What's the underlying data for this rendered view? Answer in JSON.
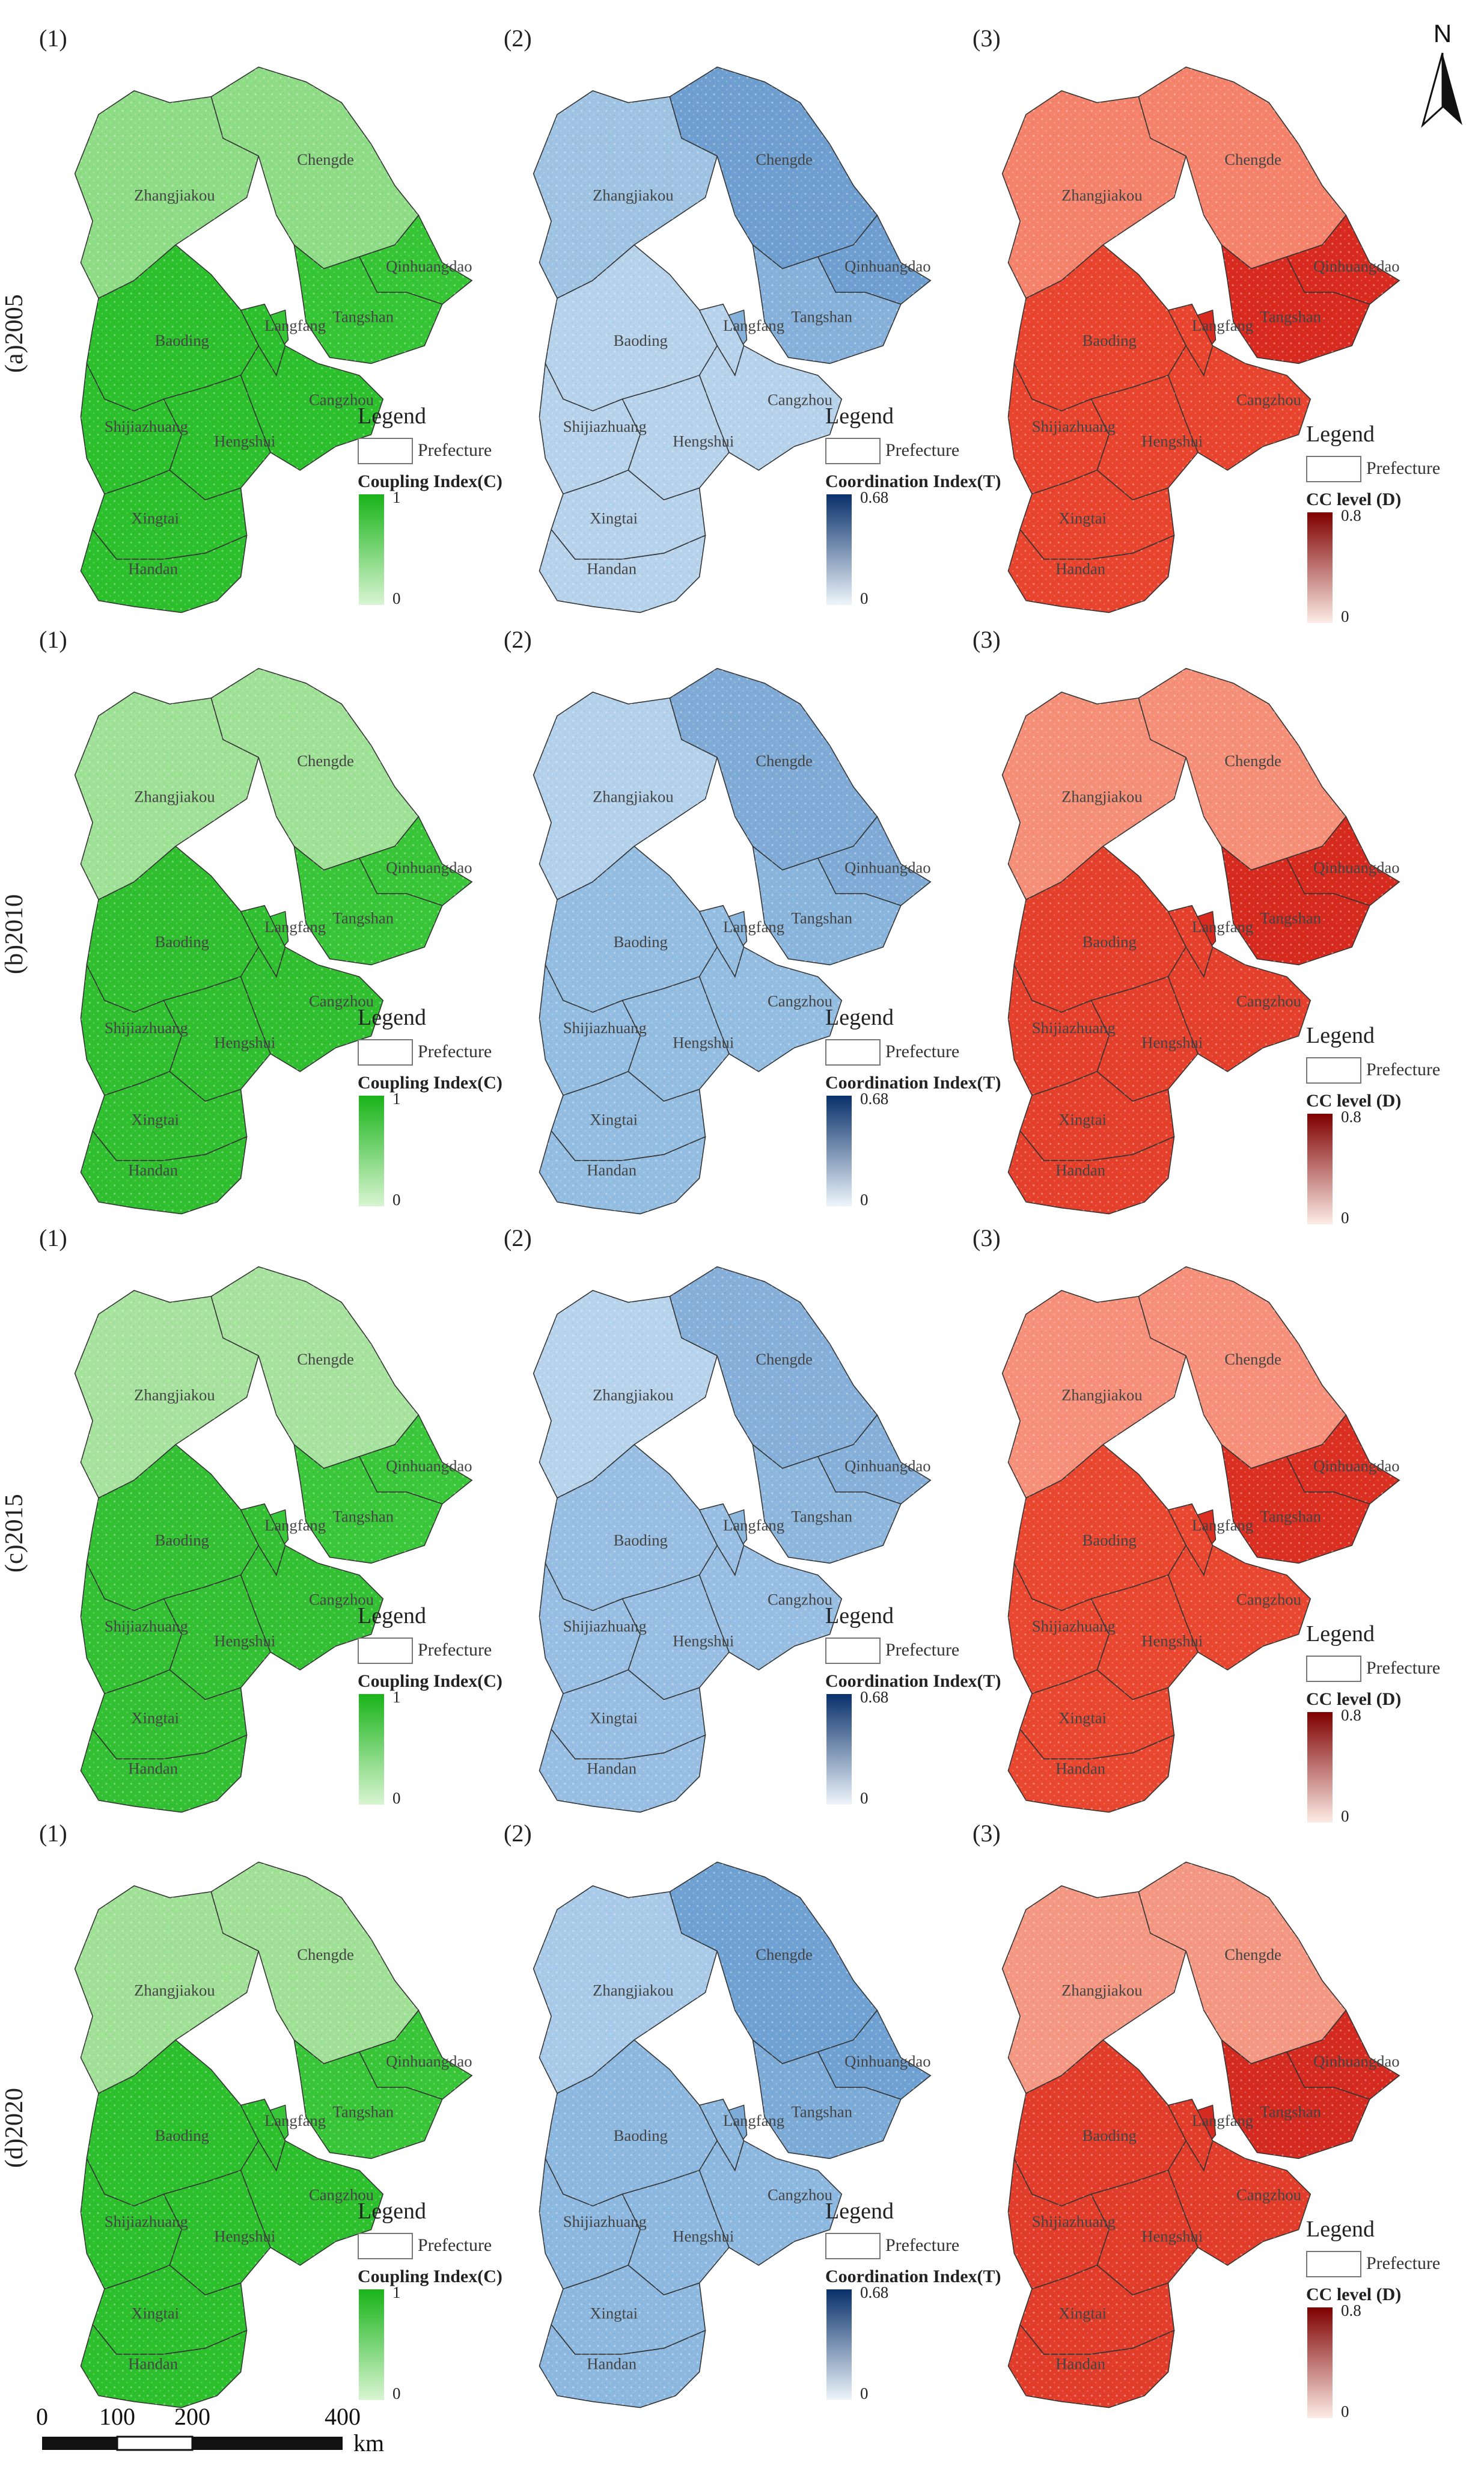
{
  "row_labels": [
    "(a)2005",
    "(b)2010",
    "(c)2015",
    "(d)2020"
  ],
  "panel_labels": [
    "(1)",
    "(2)",
    "(3)"
  ],
  "cities": [
    "Zhangjiakou",
    "Chengde",
    "Qinhuangdao",
    "Tangshan",
    "Baoding",
    "Langfang",
    "Cangzhou",
    "Shijiazhuang",
    "Hengshui",
    "Xingtai",
    "Handan"
  ],
  "legend": {
    "title": "Legend",
    "prefecture_label": "Prefecture",
    "indices": [
      {
        "title": "Coupling Index(C)",
        "max": "1",
        "min": "0",
        "color_dark": "#19b419",
        "color_light": "#d9f5d2"
      },
      {
        "title": "Coordination Index(T)",
        "max": "0.68",
        "min": "0",
        "color_dark": "#08306b",
        "color_light": "#eef5fb"
      },
      {
        "title": "CC level (D)",
        "max": "0.8",
        "min": "0",
        "color_dark": "#7f0000",
        "color_light": "#fdece6"
      }
    ]
  },
  "north_arrow": {
    "label": "N"
  },
  "scale_bar": {
    "ticks": [
      "0",
      "100",
      "200",
      "400"
    ],
    "unit": "km"
  },
  "colors": {
    "coupling": {
      "2005": {
        "north": "#8fdc86",
        "south": "#2cc02c",
        "tangshan": "#35c535"
      },
      "2010": {
        "north": "#9fe196",
        "south": "#2fbf2f",
        "tangshan": "#38c638"
      },
      "2015": {
        "north": "#a7e39e",
        "south": "#33c133",
        "tangshan": "#3ac73a"
      },
      "2020": {
        "north": "#a1e197",
        "south": "#2dc02d",
        "tangshan": "#38c638"
      }
    },
    "coordination": {
      "2005": {
        "north": "#9fc3e2",
        "chengde": "#6f9fd0",
        "south": "#b7d3ec",
        "tangshan": "#86b1da"
      },
      "2010": {
        "north": "#b4d1eb",
        "chengde": "#7fabd6",
        "south": "#94bde2",
        "tangshan": "#8ab5dc"
      },
      "2015": {
        "north": "#b8d4ec",
        "chengde": "#86b0d9",
        "south": "#98bfe3",
        "tangshan": "#8db7dd"
      },
      "2020": {
        "north": "#a9cbe9",
        "chengde": "#6fa2d3",
        "south": "#8db8e0",
        "tangshan": "#7cabd8"
      }
    },
    "cc_level": {
      "2005": {
        "north": "#f5836c",
        "south": "#e8442e",
        "tangshan": "#d92a1f"
      },
      "2010": {
        "north": "#f58f78",
        "south": "#e5402c",
        "tangshan": "#d72a1e"
      },
      "2015": {
        "north": "#f6907a",
        "south": "#e9472f",
        "tangshan": "#da2f21"
      },
      "2020": {
        "north": "#f59883",
        "south": "#e23d2a",
        "tangshan": "#d42a1f"
      }
    }
  }
}
